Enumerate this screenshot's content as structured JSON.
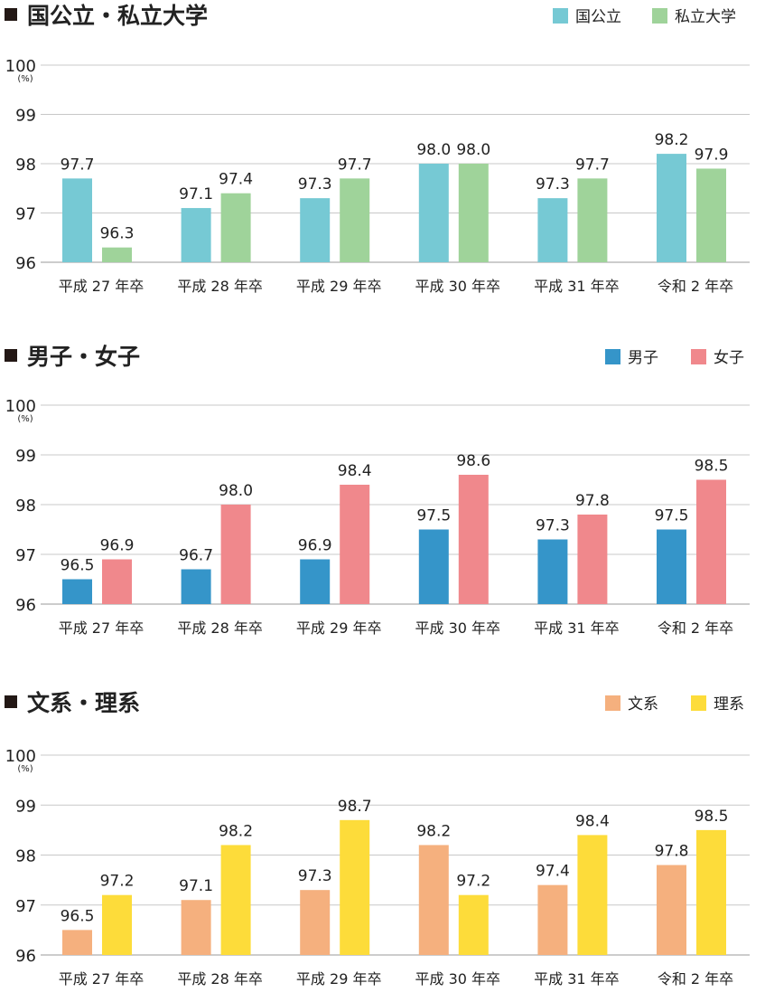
{
  "chart_data": [
    {
      "type": "bar",
      "title": "国公立・私立大学",
      "categories": [
        "平成 27 年卒",
        "平成 28 年卒",
        "平成 29 年卒",
        "平成 30 年卒",
        "平成 31 年卒",
        "令和 2 年卒"
      ],
      "series": [
        {
          "name": "国公立",
          "color": "#76c9d4",
          "values": [
            97.7,
            97.1,
            97.3,
            98.0,
            97.3,
            98.2
          ]
        },
        {
          "name": "私立大学",
          "color": "#9fd39a",
          "values": [
            96.3,
            97.4,
            97.7,
            98.0,
            97.7,
            97.9
          ]
        }
      ],
      "ylim": [
        96,
        100
      ],
      "yticks": [
        96,
        97,
        98,
        99,
        100
      ],
      "yunit": "(%)",
      "grid": true,
      "legend": "top-right"
    },
    {
      "type": "bar",
      "title": "男子・女子",
      "categories": [
        "平成 27 年卒",
        "平成 28 年卒",
        "平成 29 年卒",
        "平成 30 年卒",
        "平成 31 年卒",
        "令和 2 年卒"
      ],
      "series": [
        {
          "name": "男子",
          "color": "#3595c9",
          "values": [
            96.5,
            96.7,
            96.9,
            97.5,
            97.3,
            97.5
          ]
        },
        {
          "name": "女子",
          "color": "#f0888c",
          "values": [
            96.9,
            98.0,
            98.4,
            98.6,
            97.8,
            98.5
          ]
        }
      ],
      "ylim": [
        96,
        100
      ],
      "yticks": [
        96,
        97,
        98,
        99,
        100
      ],
      "yunit": "(%)",
      "grid": true,
      "legend": "top-right"
    },
    {
      "type": "bar",
      "title": "文系・理系",
      "categories": [
        "平成 27 年卒",
        "平成 28 年卒",
        "平成 29 年卒",
        "平成 30 年卒",
        "平成 31 年卒",
        "令和 2 年卒"
      ],
      "series": [
        {
          "name": "文系",
          "color": "#f5b07e",
          "values": [
            96.5,
            97.1,
            97.3,
            98.2,
            97.4,
            97.8
          ]
        },
        {
          "name": "理系",
          "color": "#fddc3a",
          "values": [
            97.2,
            98.2,
            98.7,
            97.2,
            98.4,
            98.5
          ]
        }
      ],
      "ylim": [
        96,
        100
      ],
      "yticks": [
        96,
        97,
        98,
        99,
        100
      ],
      "yunit": "(%)",
      "grid": true,
      "legend": "top-right"
    }
  ]
}
